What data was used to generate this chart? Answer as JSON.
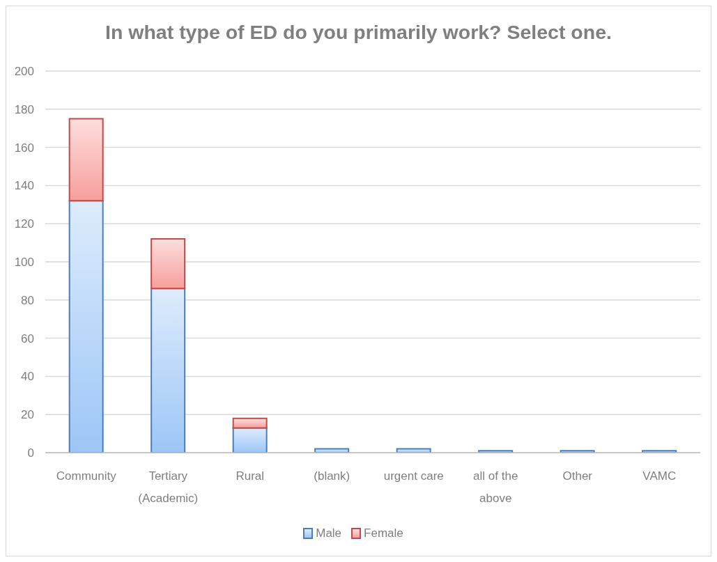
{
  "chart_data": {
    "type": "bar",
    "title": "In what type of ED do you primarily work? Select one.",
    "categories": [
      "Community",
      "Tertiary (Academic)",
      "Rural",
      "(blank)",
      "urgent care",
      "all of the above",
      "Other",
      "VAMC"
    ],
    "series": [
      {
        "name": "Male",
        "color": "#4a7ebb",
        "values": [
          132,
          86,
          13,
          2,
          2,
          1,
          1,
          1
        ]
      },
      {
        "name": "Female",
        "color": "#be4b48",
        "values": [
          43,
          26,
          5,
          null,
          null,
          null,
          null,
          null
        ]
      }
    ],
    "stacked": true,
    "ylim": [
      0,
      200
    ],
    "yticks": [
      0,
      20,
      40,
      60,
      80,
      100,
      120,
      140,
      160,
      180,
      200
    ],
    "grid": "y",
    "legend": "bottom"
  }
}
